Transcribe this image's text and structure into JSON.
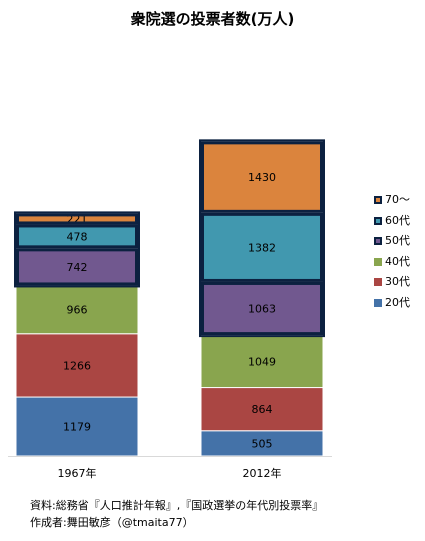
{
  "chart_data": {
    "type": "bar",
    "stacked": true,
    "title": "衆院選の投票者数(万人)",
    "categories": [
      "1967年",
      "2012年"
    ],
    "series": [
      {
        "name": "20代",
        "values": [
          1179,
          505
        ],
        "color": "#4472a8"
      },
      {
        "name": "30代",
        "values": [
          1266,
          864
        ],
        "color": "#aa4643"
      },
      {
        "name": "40代",
        "values": [
          966,
          1049
        ],
        "color": "#89a54e"
      },
      {
        "name": "50代",
        "values": [
          742,
          1063
        ],
        "color": "#71588f",
        "highlighted": true
      },
      {
        "name": "60代",
        "values": [
          478,
          1382
        ],
        "color": "#4198af",
        "highlighted": true
      },
      {
        "name": "70〜",
        "values": [
          221,
          1430
        ],
        "color": "#db843d",
        "highlighted": true
      }
    ],
    "grid": false,
    "legend_position": "right",
    "highlight_border_color": "#0c2140"
  },
  "footer": {
    "source": "資料:総務省『人口推計年報』,『国政選挙の年代別投票率』",
    "author": "作成者:舞田敏彦（@tmaita77）"
  }
}
